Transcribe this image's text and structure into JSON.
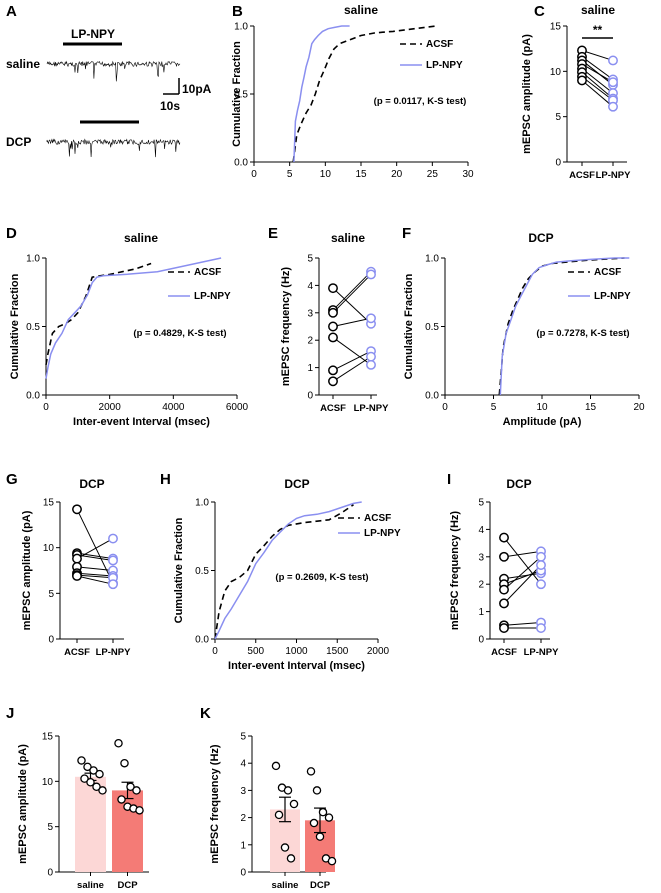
{
  "chart_data": [
    {
      "id": "A",
      "type": "trace",
      "panel_label": "A",
      "bar_label": "LP-NPY",
      "conditions": [
        "saline",
        "DCP"
      ],
      "scale_bar": {
        "amplitude": "10pA",
        "time": "10s"
      }
    },
    {
      "id": "B",
      "type": "line",
      "panel_label": "B",
      "title": "saline",
      "xlabel": "",
      "ylabel": "Cumulative Fraction",
      "xlim": [
        0,
        30
      ],
      "ylim": [
        0,
        1
      ],
      "xticks": [
        0,
        5,
        10,
        15,
        20,
        25,
        30
      ],
      "yticks": [
        0.0,
        0.5,
        1.0
      ],
      "annotation": "(p = 0.0117, K-S test)",
      "series": [
        {
          "name": "ACSF",
          "style": "dashed",
          "color": "#000000",
          "x": [
            5.5,
            6.0,
            6.6,
            7.3,
            8.0,
            8.6,
            9.2,
            9.8,
            10.5,
            11.2,
            12.0,
            13.5,
            15.0,
            17.0,
            19.5,
            22.5,
            25.5
          ],
          "y": [
            0.0,
            0.2,
            0.28,
            0.36,
            0.42,
            0.5,
            0.6,
            0.67,
            0.76,
            0.83,
            0.87,
            0.9,
            0.93,
            0.95,
            0.96,
            0.98,
            1.0
          ]
        },
        {
          "name": "LP-NPY",
          "style": "solid",
          "color": "#8a8ff0",
          "x": [
            5.6,
            5.8,
            6.1,
            6.4,
            6.7,
            7.0,
            7.3,
            7.7,
            8.1,
            8.5,
            9.0,
            9.6,
            10.4,
            11.3,
            12.3,
            13.4
          ],
          "y": [
            0.0,
            0.3,
            0.38,
            0.45,
            0.55,
            0.62,
            0.7,
            0.77,
            0.87,
            0.9,
            0.93,
            0.96,
            0.98,
            0.99,
            1.0,
            1.0
          ]
        }
      ]
    },
    {
      "id": "C",
      "type": "paired",
      "panel_label": "C",
      "title": "saline",
      "ylabel": "mEPSC amplitude (pA)",
      "categories": [
        "ACSF",
        "LP-NPY"
      ],
      "ylim": [
        0,
        15
      ],
      "yticks": [
        0,
        5,
        10,
        15
      ],
      "significance": "**",
      "pairs": [
        [
          12.3,
          11.2
        ],
        [
          11.6,
          9.1
        ],
        [
          11.2,
          8.5
        ],
        [
          10.8,
          8.8
        ],
        [
          10.3,
          7.6
        ],
        [
          9.9,
          7.0
        ],
        [
          9.4,
          6.8
        ],
        [
          9.0,
          6.1
        ]
      ]
    },
    {
      "id": "D",
      "type": "line",
      "panel_label": "D",
      "title": "saline",
      "xlabel": "Inter-event Interval (msec)",
      "ylabel": "Cumulative Fraction",
      "xlim": [
        0,
        6000
      ],
      "ylim": [
        0,
        1
      ],
      "xticks": [
        0,
        2000,
        4000,
        6000
      ],
      "yticks": [
        0.0,
        0.5,
        1.0
      ],
      "annotation": "(p = 0.4829, K-S test)",
      "series": [
        {
          "name": "ACSF",
          "style": "dashed",
          "color": "#000000",
          "x": [
            0,
            60,
            200,
            400,
            600,
            800,
            1000,
            1250,
            1450,
            1700,
            2000,
            2400,
            2800,
            3300
          ],
          "y": [
            0.22,
            0.3,
            0.45,
            0.5,
            0.52,
            0.55,
            0.6,
            0.72,
            0.86,
            0.87,
            0.88,
            0.9,
            0.92,
            0.96
          ]
        },
        {
          "name": "LP-NPY",
          "style": "solid",
          "color": "#8a8ff0",
          "x": [
            0,
            60,
            150,
            300,
            500,
            700,
            900,
            1100,
            1300,
            1450,
            1600,
            1800,
            2500,
            3500,
            4500,
            5500
          ],
          "y": [
            0.12,
            0.2,
            0.3,
            0.38,
            0.45,
            0.55,
            0.6,
            0.65,
            0.73,
            0.82,
            0.86,
            0.87,
            0.88,
            0.9,
            0.95,
            1.0
          ]
        }
      ]
    },
    {
      "id": "E",
      "type": "paired",
      "panel_label": "E",
      "title": "saline",
      "ylabel": "mEPSC frequency (Hz)",
      "categories": [
        "ACSF",
        "LP-NPY"
      ],
      "ylim": [
        0,
        5
      ],
      "yticks": [
        0,
        1,
        2,
        3,
        4,
        5
      ],
      "pairs": [
        [
          3.9,
          2.6
        ],
        [
          3.1,
          4.5
        ],
        [
          3.0,
          4.4
        ],
        [
          2.5,
          2.8
        ],
        [
          2.1,
          1.1
        ],
        [
          0.9,
          1.6
        ],
        [
          0.5,
          1.4
        ]
      ]
    },
    {
      "id": "F",
      "type": "line",
      "panel_label": "F",
      "title": "DCP",
      "xlabel": "Amplitude (pA)",
      "ylabel": "Cumulative Fraction",
      "xlim": [
        0,
        20
      ],
      "ylim": [
        0,
        1
      ],
      "xticks": [
        0,
        5,
        10,
        15,
        20
      ],
      "yticks": [
        0.0,
        0.5,
        1.0
      ],
      "annotation": "(p = 0.7278, K-S test)",
      "series": [
        {
          "name": "ACSF",
          "style": "dashed",
          "color": "#000000",
          "x": [
            5.6,
            6.0,
            6.5,
            7.0,
            7.5,
            8.0,
            8.6,
            9.3,
            10.0,
            11.0,
            12.5,
            14.0,
            16.0,
            18.5
          ],
          "y": [
            0.0,
            0.35,
            0.52,
            0.62,
            0.7,
            0.78,
            0.85,
            0.9,
            0.94,
            0.96,
            0.97,
            0.98,
            0.99,
            1.0
          ]
        },
        {
          "name": "LP-NPY",
          "style": "solid",
          "color": "#8a8ff0",
          "x": [
            5.7,
            5.9,
            6.3,
            6.8,
            7.3,
            7.8,
            8.4,
            9.0,
            9.7,
            10.5,
            11.5,
            13.0,
            15.0,
            17.5,
            19.0
          ],
          "y": [
            0.0,
            0.28,
            0.45,
            0.55,
            0.65,
            0.72,
            0.8,
            0.88,
            0.93,
            0.95,
            0.97,
            0.98,
            0.99,
            1.0,
            1.0
          ]
        }
      ]
    },
    {
      "id": "G",
      "type": "paired",
      "panel_label": "G",
      "title": "DCP",
      "ylabel": "mEPSC amplitude (pA)",
      "categories": [
        "ACSF",
        "LP-NPY"
      ],
      "ylim": [
        0,
        15
      ],
      "yticks": [
        0,
        5,
        10,
        15
      ],
      "pairs": [
        [
          14.2,
          6.1
        ],
        [
          9.4,
          8.8
        ],
        [
          9.2,
          8.6
        ],
        [
          8.8,
          11.0
        ],
        [
          7.9,
          7.5
        ],
        [
          7.2,
          6.9
        ],
        [
          7.0,
          6.7
        ],
        [
          6.9,
          6.0
        ]
      ]
    },
    {
      "id": "H",
      "type": "line",
      "panel_label": "H",
      "title": "DCP",
      "xlabel": "Inter-event Interval (msec)",
      "ylabel": "Cumulative Fraction",
      "xlim": [
        0,
        2000
      ],
      "ylim": [
        0,
        1
      ],
      "xticks": [
        0,
        500,
        1000,
        1500,
        2000
      ],
      "yticks": [
        0.0,
        0.5,
        1.0
      ],
      "annotation": "(p = 0.2609, K-S test)",
      "series": [
        {
          "name": "ACSF",
          "style": "dashed",
          "color": "#000000",
          "x": [
            0,
            50,
            120,
            200,
            300,
            400,
            500,
            600,
            700,
            800,
            900,
            1000,
            1100,
            1250,
            1400,
            1550,
            1700
          ],
          "y": [
            0.0,
            0.2,
            0.35,
            0.42,
            0.45,
            0.5,
            0.62,
            0.68,
            0.75,
            0.8,
            0.83,
            0.84,
            0.85,
            0.86,
            0.87,
            0.92,
            0.98
          ]
        },
        {
          "name": "LP-NPY",
          "style": "solid",
          "color": "#8a8ff0",
          "x": [
            0,
            50,
            120,
            200,
            300,
            400,
            500,
            600,
            700,
            800,
            900,
            1000,
            1100,
            1250,
            1400,
            1550,
            1700,
            1800
          ],
          "y": [
            0.0,
            0.06,
            0.15,
            0.22,
            0.32,
            0.42,
            0.55,
            0.63,
            0.72,
            0.78,
            0.84,
            0.88,
            0.9,
            0.91,
            0.93,
            0.96,
            0.99,
            1.0
          ]
        }
      ]
    },
    {
      "id": "I",
      "type": "paired",
      "panel_label": "I",
      "title": "DCP",
      "ylabel": "mEPSC frequency (Hz)",
      "categories": [
        "ACSF",
        "LP-NPY"
      ],
      "ylim": [
        0,
        5
      ],
      "yticks": [
        0,
        1,
        2,
        3,
        4,
        5
      ],
      "pairs": [
        [
          3.7,
          2.0
        ],
        [
          3.0,
          3.2
        ],
        [
          2.2,
          2.4
        ],
        [
          2.0,
          2.5
        ],
        [
          1.8,
          3.0
        ],
        [
          1.3,
          2.7
        ],
        [
          0.5,
          0.6
        ],
        [
          0.4,
          0.4
        ]
      ]
    },
    {
      "id": "J",
      "type": "bar",
      "panel_label": "J",
      "ylabel": "mEPSC amplitude (pA)",
      "categories": [
        "saline",
        "DCP"
      ],
      "values": [
        10.5,
        9.0
      ],
      "errors": [
        0.4,
        0.9
      ],
      "colors": [
        "#fcd7d6",
        "#f47b76"
      ],
      "ylim": [
        0,
        15
      ],
      "yticks": [
        0,
        5,
        10,
        15
      ],
      "points": [
        [
          12.3,
          11.6,
          11.2,
          10.8,
          10.3,
          9.9,
          9.4,
          9.0
        ],
        [
          14.2,
          12.0,
          9.4,
          9.0,
          8.0,
          7.2,
          7.0,
          6.8
        ]
      ]
    },
    {
      "id": "K",
      "type": "bar",
      "panel_label": "K",
      "ylabel": "mEPSC frequency (Hz)",
      "categories": [
        "saline",
        "DCP"
      ],
      "values": [
        2.3,
        1.9
      ],
      "errors": [
        0.45,
        0.45
      ],
      "colors": [
        "#fcd7d6",
        "#f47b76"
      ],
      "ylim": [
        0,
        5
      ],
      "yticks": [
        0,
        1,
        2,
        3,
        4,
        5
      ],
      "points": [
        [
          3.9,
          3.1,
          3.0,
          2.5,
          2.1,
          0.9,
          0.5
        ],
        [
          3.7,
          3.0,
          2.2,
          2.0,
          1.8,
          1.3,
          0.5,
          0.4
        ]
      ]
    }
  ]
}
